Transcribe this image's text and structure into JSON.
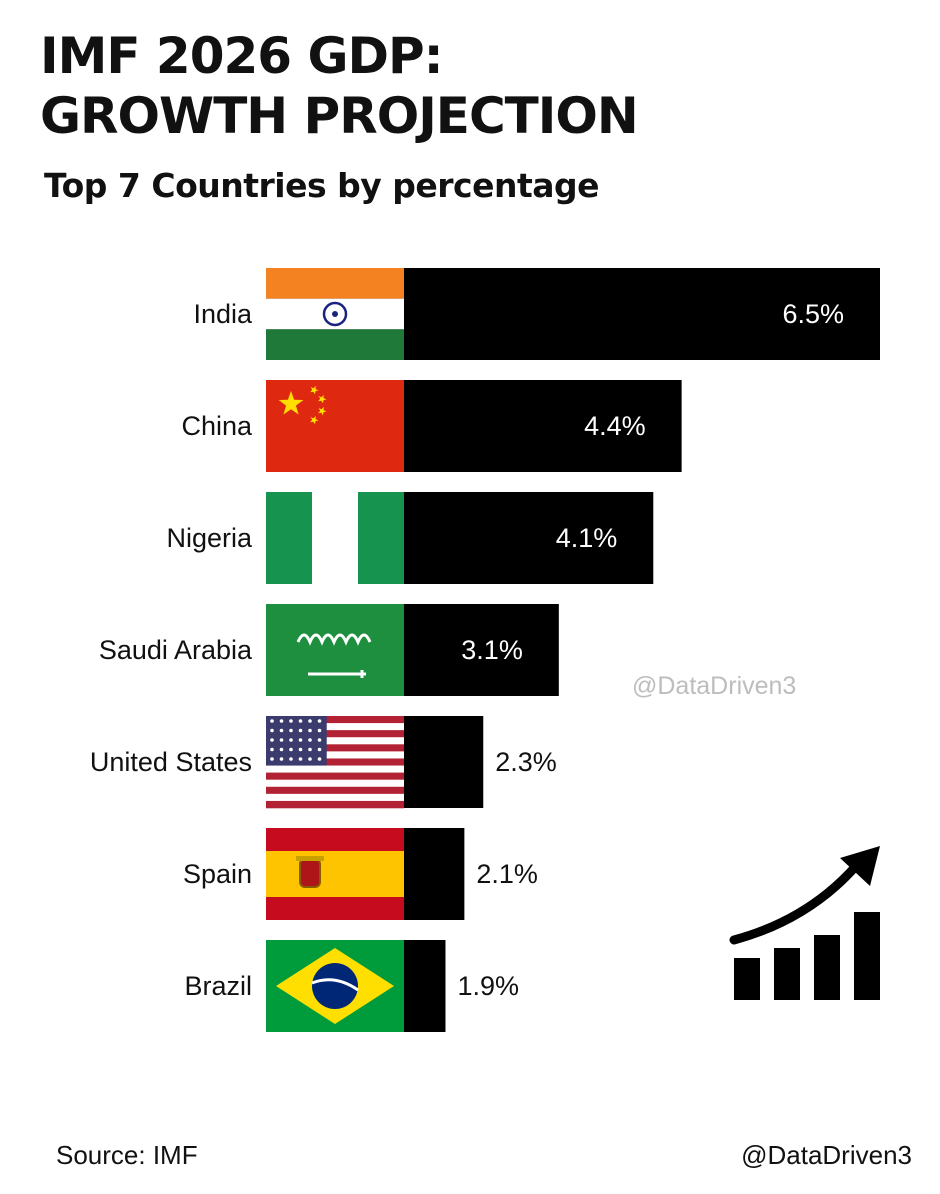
{
  "header": {
    "title_line1": "IMF 2026 GDP:",
    "title_line2": "GROWTH PROJECTION",
    "subtitle": "Top 7 Countries by percentage"
  },
  "watermark": "@DataDriven3",
  "footer": {
    "source": "Source: IMF",
    "handle": "@DataDriven3"
  },
  "colors": {
    "bar": "#000000",
    "label_inside": "#ffffff",
    "label_outside": "#111111"
  },
  "icons": [
    "flag-india-icon",
    "flag-china-icon",
    "flag-nigeria-icon",
    "flag-saudi-arabia-icon",
    "flag-united-states-icon",
    "flag-spain-icon",
    "flag-brazil-icon",
    "growth-chart-icon"
  ],
  "chart_data": {
    "type": "bar",
    "orientation": "horizontal",
    "categories": [
      "India",
      "China",
      "Nigeria",
      "Saudi Arabia",
      "United States",
      "Spain",
      "Brazil"
    ],
    "values": [
      6.5,
      4.4,
      4.1,
      3.1,
      2.3,
      2.1,
      1.9
    ],
    "value_labels": [
      "6.5%",
      "4.4%",
      "4.1%",
      "3.1%",
      "2.3%",
      "2.1%",
      "1.9%"
    ],
    "title": "IMF 2026 GDP: GROWTH PROJECTION",
    "subtitle": "Top 7 Countries by percentage",
    "xlabel": "",
    "ylabel": "",
    "grid": false,
    "legend": "none"
  }
}
